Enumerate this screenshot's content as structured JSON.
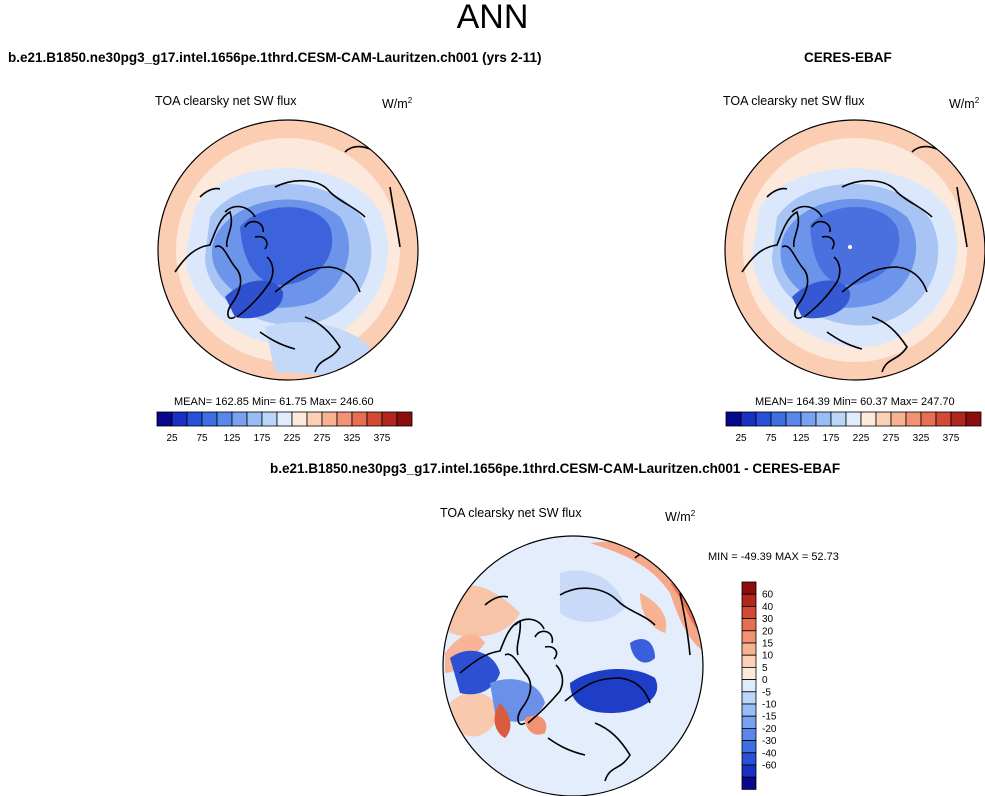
{
  "figure": {
    "season": "ANN",
    "variable": "TOA clearsky net SW flux",
    "units_base": "W/m",
    "units_exp": "2"
  },
  "top_left": {
    "case": "b.e21.B1850.ne30pg3_g17.intel.1656pe.1thrd.CESM-CAM-Lauritzen.ch001 (yrs 2-11)",
    "title": "TOA clearsky net SW flux",
    "stats": "MEAN= 162.85  Min=  61.75  Max= 246.60"
  },
  "top_right": {
    "case": "CERES-EBAF",
    "title": "TOA clearsky net SW flux",
    "stats": "MEAN= 164.39  Min=  60.37  Max= 247.70"
  },
  "bottom": {
    "case": "b.e21.B1850.ne30pg3_g17.intel.1656pe.1thrd.CESM-CAM-Lauritzen.ch001 - CERES-EBAF",
    "title": "TOA clearsky net SW flux",
    "minmax": "MIN = -49.39 MAX =  52.73"
  },
  "abs_colorbar": {
    "colors": [
      "#08088c",
      "#1a30c4",
      "#2850d8",
      "#3f6ee2",
      "#5a88ea",
      "#78a2ef",
      "#98bcf4",
      "#bcd6f9",
      "#e0ecfc",
      "#fdeadc",
      "#fbd0b7",
      "#f7b292",
      "#f29173",
      "#e86e52",
      "#d24a34",
      "#b3261e",
      "#8c0e0c"
    ],
    "tick_labels": [
      "25",
      "75",
      "125",
      "175",
      "225",
      "275",
      "325",
      "375"
    ]
  },
  "diff_colorbar": {
    "colors": [
      "#08088c",
      "#1a30c4",
      "#2850d8",
      "#3f6ee2",
      "#5a88ea",
      "#78a2ef",
      "#98bcf4",
      "#bcd6f9",
      "#e0ecfc",
      "#fdeadc",
      "#fbd0b7",
      "#f7b292",
      "#f29173",
      "#e86e52",
      "#d24a34",
      "#b3261e",
      "#8c0e0c"
    ],
    "tick_labels": [
      "60",
      "40",
      "30",
      "20",
      "15",
      "10",
      "5",
      "0",
      "-5",
      "-10",
      "-15",
      "-20",
      "-30",
      "-40",
      "-60"
    ]
  }
}
